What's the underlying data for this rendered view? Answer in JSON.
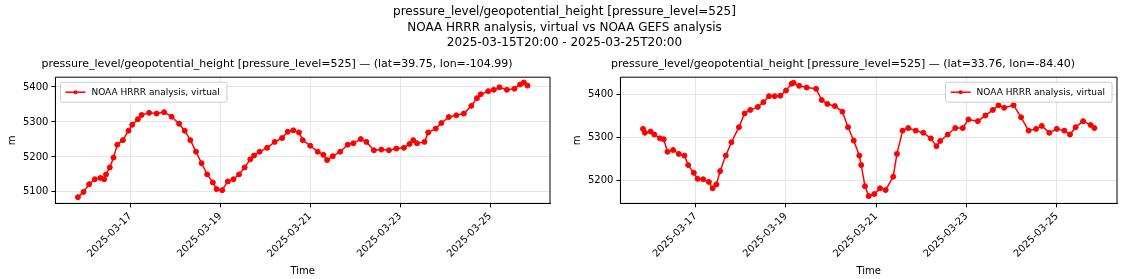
{
  "chart_data": [
    {
      "type": "line",
      "title": "pressure_level/geopotential_height [pressure_level=525] — (lat=39.75, lon=-104.99)",
      "annotations": [
        "pressure_level/geopotential_height [pressure_level=525]",
        "NOAA HRRR analysis, virtual vs NOAA GEFS analysis",
        "2025-03-15T20:00 - 2025-03-25T20:00"
      ],
      "xlabel": "Time",
      "ylabel": "m",
      "x": [
        "2025-03-15T20:00",
        "2025-03-15T23:00",
        "2025-03-16T02:00",
        "2025-03-16T05:00",
        "2025-03-16T08:00",
        "2025-03-16T10:00",
        "2025-03-16T11:00",
        "2025-03-16T13:00",
        "2025-03-16T15:00",
        "2025-03-16T17:00",
        "2025-03-16T20:00",
        "2025-03-16T23:00",
        "2025-03-17T01:00",
        "2025-03-17T04:00",
        "2025-03-17T06:00",
        "2025-03-17T10:00",
        "2025-03-17T14:00",
        "2025-03-17T18:00",
        "2025-03-17T22:00",
        "2025-03-18T02:00",
        "2025-03-18T05:00",
        "2025-03-18T08:00",
        "2025-03-18T11:00",
        "2025-03-18T14:00",
        "2025-03-18T17:00",
        "2025-03-18T20:00",
        "2025-03-18T22:00",
        "2025-03-19T01:00",
        "2025-03-19T04:00",
        "2025-03-19T07:00",
        "2025-03-19T10:00",
        "2025-03-19T13:00",
        "2025-03-19T16:00",
        "2025-03-19T18:00",
        "2025-03-19T21:00",
        "2025-03-20T01:00",
        "2025-03-20T05:00",
        "2025-03-20T09:00",
        "2025-03-20T12:00",
        "2025-03-20T15:00",
        "2025-03-20T18:00",
        "2025-03-20T20:00",
        "2025-03-21T00:00",
        "2025-03-21T04:00",
        "2025-03-21T07:00",
        "2025-03-21T09:00",
        "2025-03-21T12:00",
        "2025-03-21T16:00",
        "2025-03-21T20:00",
        "2025-03-21T23:00",
        "2025-03-22T03:00",
        "2025-03-22T06:00",
        "2025-03-22T10:00",
        "2025-03-22T14:00",
        "2025-03-22T18:00",
        "2025-03-22T22:00",
        "2025-03-23T02:00",
        "2025-03-23T05:00",
        "2025-03-23T07:00",
        "2025-03-23T09:00",
        "2025-03-23T13:00",
        "2025-03-23T15:00",
        "2025-03-23T19:00",
        "2025-03-23T22:00",
        "2025-03-24T02:00",
        "2025-03-24T06:00",
        "2025-03-24T10:00",
        "2025-03-24T14:00",
        "2025-03-24T17:00",
        "2025-03-24T19:00",
        "2025-03-24T23:00",
        "2025-03-25T02:00",
        "2025-03-25T05:00",
        "2025-03-25T09:00",
        "2025-03-25T13:00",
        "2025-03-25T16:00",
        "2025-03-25T18:00",
        "2025-03-25T20:00"
      ],
      "series": [
        {
          "name": "NOAA HRRR analysis, virtual",
          "color": "#ff0000",
          "values": [
            5085,
            5100,
            5122,
            5136,
            5140,
            5136,
            5150,
            5170,
            5198,
            5235,
            5248,
            5275,
            5292,
            5308,
            5320,
            5326,
            5324,
            5328,
            5315,
            5295,
            5275,
            5248,
            5215,
            5182,
            5150,
            5127,
            5108,
            5105,
            5130,
            5136,
            5150,
            5170,
            5193,
            5204,
            5215,
            5226,
            5243,
            5254,
            5272,
            5276,
            5270,
            5248,
            5232,
            5215,
            5206,
            5191,
            5202,
            5215,
            5235,
            5239,
            5251,
            5243,
            5219,
            5221,
            5219,
            5224,
            5226,
            5237,
            5248,
            5239,
            5243,
            5270,
            5281,
            5297,
            5314,
            5319,
            5324,
            5346,
            5368,
            5379,
            5388,
            5392,
            5399,
            5392,
            5395,
            5407,
            5413,
            5404
          ]
        }
      ],
      "xlim": [
        "2025-03-15T08:00",
        "2025-03-26T08:00"
      ],
      "xticks": [
        "2025-03-17",
        "2025-03-19",
        "2025-03-21",
        "2025-03-23",
        "2025-03-25"
      ],
      "ylim": [
        5067,
        5428
      ],
      "yticks": [
        5100,
        5200,
        5300,
        5400
      ],
      "grid": true,
      "legend": "top left",
      "marker": "circle",
      "line_style": "solid"
    },
    {
      "type": "line",
      "title": "pressure_level/geopotential_height [pressure_level=525] — (lat=33.76, lon=-84.40)",
      "xlabel": "Time",
      "ylabel": "m",
      "x": [
        "2025-03-15T20:00",
        "2025-03-15T21:00",
        "2025-03-16T00:00",
        "2025-03-16T02:00",
        "2025-03-16T05:00",
        "2025-03-16T07:00",
        "2025-03-16T09:00",
        "2025-03-16T12:00",
        "2025-03-16T15:00",
        "2025-03-16T18:00",
        "2025-03-16T20:00",
        "2025-03-16T23:00",
        "2025-03-17T01:00",
        "2025-03-17T04:00",
        "2025-03-17T07:00",
        "2025-03-17T09:00",
        "2025-03-17T11:00",
        "2025-03-17T13:00",
        "2025-03-17T16:00",
        "2025-03-17T19:00",
        "2025-03-17T23:00",
        "2025-03-18T02:00",
        "2025-03-18T05:00",
        "2025-03-18T09:00",
        "2025-03-18T12:00",
        "2025-03-18T15:00",
        "2025-03-18T18:00",
        "2025-03-18T21:00",
        "2025-03-19T00:00",
        "2025-03-19T03:00",
        "2025-03-19T04:00",
        "2025-03-19T07:00",
        "2025-03-19T11:00",
        "2025-03-19T16:00",
        "2025-03-19T19:00",
        "2025-03-19T22:00",
        "2025-03-20T02:00",
        "2025-03-20T06:00",
        "2025-03-20T09:00",
        "2025-03-20T12:00",
        "2025-03-20T15:00",
        "2025-03-20T16:00",
        "2025-03-20T18:00",
        "2025-03-20T20:00",
        "2025-03-20T23:00",
        "2025-03-21T02:00",
        "2025-03-21T05:00",
        "2025-03-21T09:00",
        "2025-03-21T11:00",
        "2025-03-21T14:00",
        "2025-03-21T17:00",
        "2025-03-21T21:00",
        "2025-03-22T01:00",
        "2025-03-22T05:00",
        "2025-03-22T08:00",
        "2025-03-22T10:00",
        "2025-03-22T14:00",
        "2025-03-22T18:00",
        "2025-03-22T22:00",
        "2025-03-23T01:00",
        "2025-03-23T06:00",
        "2025-03-23T10:00",
        "2025-03-23T14:00",
        "2025-03-23T17:00",
        "2025-03-23T20:00",
        "2025-03-24T01:00",
        "2025-03-24T05:00",
        "2025-03-24T09:00",
        "2025-03-24T13:00",
        "2025-03-24T16:00",
        "2025-03-24T20:00",
        "2025-03-25T00:00",
        "2025-03-25T04:00",
        "2025-03-25T07:00",
        "2025-03-25T10:00",
        "2025-03-25T14:00",
        "2025-03-25T18:00",
        "2025-03-25T20:00"
      ],
      "series": [
        {
          "name": "NOAA HRRR analysis, virtual",
          "color": "#ff0000",
          "values": [
            5320,
            5311,
            5314,
            5307,
            5298,
            5296,
            5267,
            5271,
            5262,
            5258,
            5236,
            5218,
            5204,
            5203,
            5197,
            5182,
            5191,
            5222,
            5258,
            5289,
            5324,
            5356,
            5364,
            5371,
            5382,
            5396,
            5396,
            5397,
            5409,
            5425,
            5427,
            5420,
            5416,
            5413,
            5387,
            5378,
            5373,
            5360,
            5324,
            5293,
            5258,
            5236,
            5187,
            5164,
            5169,
            5182,
            5178,
            5209,
            5262,
            5316,
            5322,
            5316,
            5311,
            5298,
            5280,
            5292,
            5307,
            5322,
            5322,
            5342,
            5338,
            5351,
            5364,
            5375,
            5369,
            5375,
            5347,
            5316,
            5320,
            5327,
            5311,
            5320,
            5316,
            5307,
            5324,
            5338,
            5329,
            5322
          ]
        }
      ],
      "xlim": [
        "2025-03-15T08:00",
        "2025-03-26T08:00"
      ],
      "xticks": [
        "2025-03-17",
        "2025-03-19",
        "2025-03-21",
        "2025-03-23",
        "2025-03-25"
      ],
      "ylim": [
        5147,
        5440
      ],
      "yticks": [
        5200,
        5300,
        5400
      ],
      "grid": true,
      "legend": "top right",
      "marker": "circle",
      "line_style": "solid"
    }
  ]
}
